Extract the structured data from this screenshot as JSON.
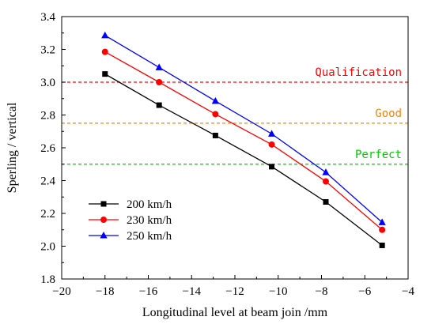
{
  "chart_data": {
    "type": "line",
    "xlabel": "Longitudinal level at beam join /mm",
    "ylabel": "Sperling / vertical",
    "xlim": [
      -20,
      -4
    ],
    "ylim": [
      1.8,
      3.4
    ],
    "x_ticks": [
      -20,
      -18,
      -16,
      -14,
      -12,
      -10,
      -8,
      -6,
      -4
    ],
    "y_ticks": [
      1.8,
      2.0,
      2.2,
      2.4,
      2.6,
      2.8,
      3.0,
      3.2,
      3.4
    ],
    "x_tick_labels": [
      "−20",
      "−18",
      "−16",
      "−14",
      "−12",
      "−10",
      "−8",
      "−6",
      "−4"
    ],
    "y_tick_labels": [
      "1.8",
      "2.0",
      "2.2",
      "2.4",
      "2.6",
      "2.8",
      "3.0",
      "3.2",
      "3.4"
    ],
    "grid": false,
    "legend_position": "bottom-left",
    "series": [
      {
        "name": "200 km/h",
        "color": "#000000",
        "marker": "square",
        "x": [
          -18.0,
          -15.5,
          -12.9,
          -10.3,
          -7.8,
          -5.2
        ],
        "y": [
          3.05,
          2.86,
          2.675,
          2.485,
          2.27,
          2.005
        ]
      },
      {
        "name": "230 km/h",
        "color": "#ff0000",
        "marker": "circle",
        "x": [
          -18.0,
          -15.5,
          -12.9,
          -10.3,
          -7.8,
          -5.2
        ],
        "y": [
          3.185,
          3.0,
          2.805,
          2.62,
          2.395,
          2.1
        ]
      },
      {
        "name": "250 km/h",
        "color": "#0000ff",
        "marker": "triangle",
        "x": [
          -18.0,
          -15.5,
          -12.9,
          -10.3,
          -7.8,
          -5.2
        ],
        "y": [
          3.285,
          3.09,
          2.885,
          2.685,
          2.45,
          2.145
        ]
      }
    ],
    "reference_lines": [
      {
        "label": "Qualification",
        "y": 3.0,
        "color": "#ff0000"
      },
      {
        "label": "Good",
        "y": 2.75,
        "color": "#ff8000"
      },
      {
        "label": "Perfect",
        "y": 2.5,
        "color": "#00cc00"
      }
    ]
  }
}
